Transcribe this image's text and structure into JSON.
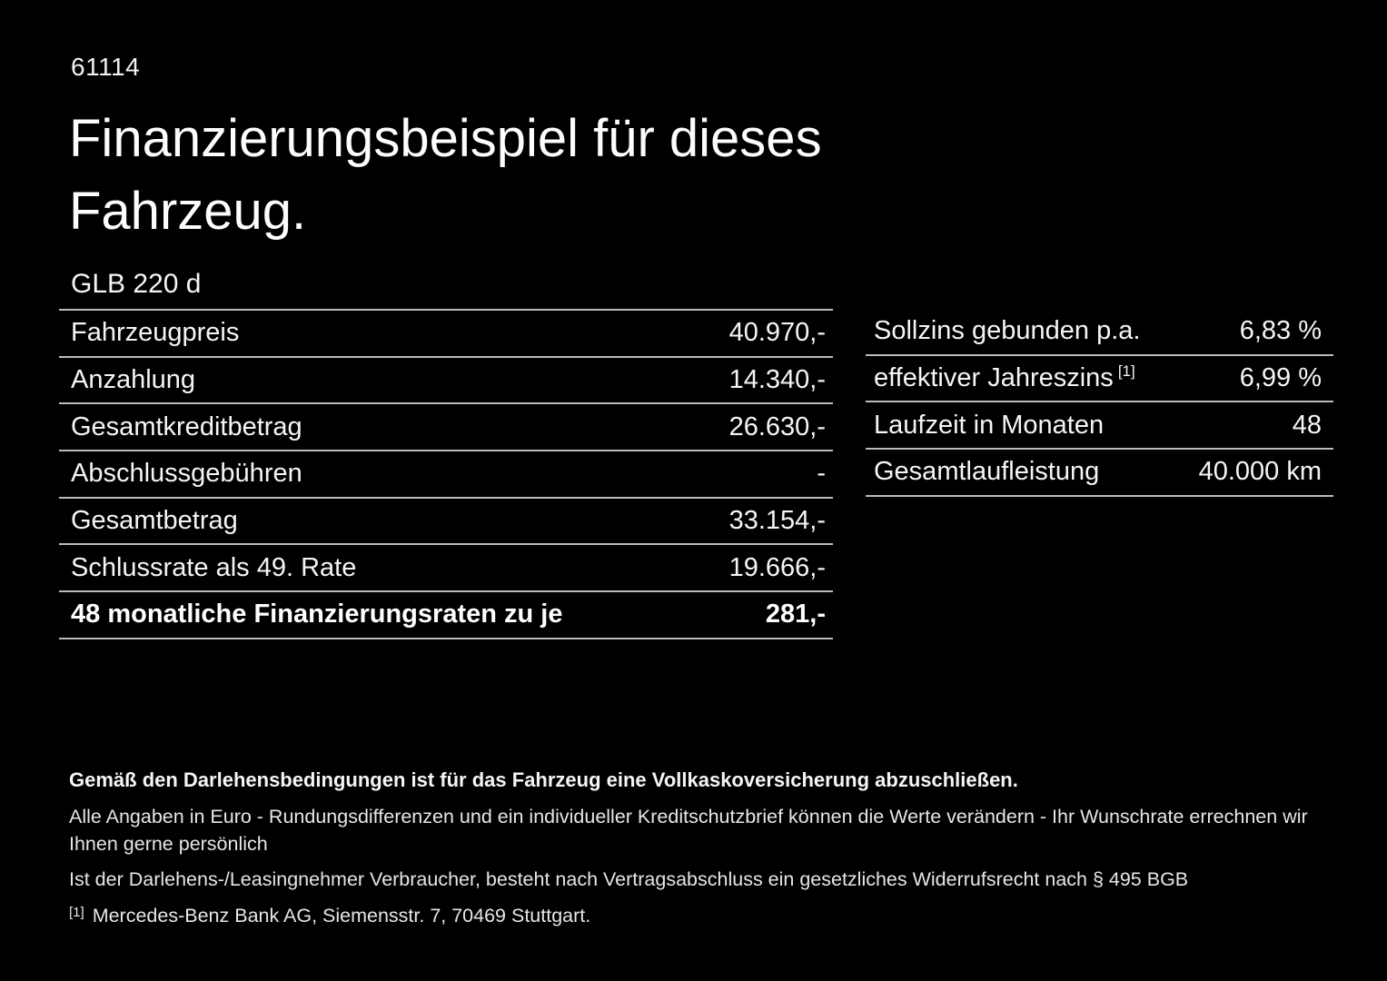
{
  "page": {
    "doc_id": "61114",
    "title_line1": "Finanzierungsbeispiel für dieses",
    "title_line2": "Fahrzeug.",
    "model": "GLB 220 d"
  },
  "finance_table": {
    "rows": [
      {
        "label": "Fahrzeugpreis",
        "value": "40.970,-"
      },
      {
        "label": "Anzahlung",
        "value": "14.340,-"
      },
      {
        "label": "Gesamtkreditbetrag",
        "value": "26.630,-"
      },
      {
        "label": "Abschlussgebühren",
        "value": "-"
      },
      {
        "label": "Gesamtbetrag",
        "value": "33.154,-"
      },
      {
        "label": "Schlussrate als 49. Rate",
        "value": "19.666,-"
      },
      {
        "label": "48 monatliche Finanzierungsraten zu je",
        "value": "281,-"
      }
    ]
  },
  "conditions_table": {
    "rows": [
      {
        "label": "Sollzins gebunden p.a.",
        "value": "6,83 %"
      },
      {
        "label": "effektiver Jahreszins",
        "footnote_marker": "[1]",
        "value": "6,99 %"
      },
      {
        "label": "Laufzeit in Monaten",
        "value": "48"
      },
      {
        "label": "Gesamtlaufleistung",
        "value": "40.000 km"
      }
    ]
  },
  "footer": {
    "insurance_note": "Gemäß den Darlehensbedingungen ist für das Fahrzeug eine Vollkaskoversicherung abzuschließen.",
    "note_line1": "Alle Angaben in Euro - Rundungsdifferenzen und ein individueller Kreditschutzbrief können die Werte verändern - Ihr Wunschrate errechnen wir Ihnen gerne persönlich",
    "note_line2": "Ist der Darlehens-/Leasingnehmer Verbraucher, besteht nach Vertragsabschluss ein gesetzliches Widerrufsrecht nach § 495 BGB",
    "footnote_marker": "[1]",
    "footnote_text": "Mercedes-Benz Bank AG, Siemensstr. 7, 70469 Stuttgart."
  },
  "colors": {
    "background": "#000000",
    "text": "#ffffff",
    "divider": "#bbbbbb"
  }
}
